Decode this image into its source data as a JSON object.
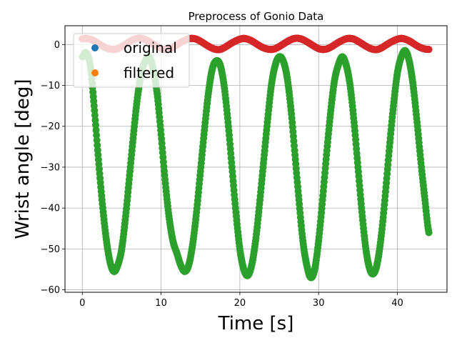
{
  "chart_data": {
    "type": "scatter",
    "title": "Preprocess of Gonio Data",
    "xlabel": "Time [s]",
    "ylabel": "Wrist angle [deg]",
    "xlim": [
      -2.2,
      46.3
    ],
    "ylim": [
      -60.6,
      4.6
    ],
    "xticks": [
      0,
      10,
      20,
      30,
      40
    ],
    "yticks": [
      0,
      -10,
      -20,
      -30,
      -40,
      -50,
      -60
    ],
    "xtick_labels": [
      "0",
      "10",
      "20",
      "30",
      "40"
    ],
    "ytick_labels": [
      "0",
      "−10",
      "−20",
      "−30",
      "−40",
      "−50",
      "−60"
    ],
    "grid": true,
    "legend_placement": "top-left",
    "legend": [
      {
        "label": "original",
        "color": "#1f77b4"
      },
      {
        "label": "filtered",
        "color": "#ff7f0e"
      }
    ],
    "series": [
      {
        "color": "#2ca02c",
        "x": [
          0.0,
          0.5,
          1.0,
          1.5,
          2.0,
          2.5,
          3.0,
          3.5,
          4.0,
          4.5,
          5.0,
          5.5,
          6.0,
          6.5,
          7.0,
          7.5,
          8.0,
          8.5,
          9.0,
          9.5,
          10.0,
          10.5,
          11.0,
          11.5,
          12.0,
          12.5,
          13.0,
          13.5,
          14.0,
          14.5,
          15.0,
          15.5,
          16.0,
          16.5,
          17.0,
          17.5,
          18.0,
          18.5,
          19.0,
          19.5,
          20.0,
          20.5,
          21.0,
          21.5,
          22.0,
          22.5,
          23.0,
          23.5,
          24.0,
          24.5,
          25.0,
          25.5,
          26.0,
          26.5,
          27.0,
          27.5,
          28.0,
          28.5,
          29.0,
          29.5,
          30.0,
          30.5,
          31.0,
          31.5,
          32.0,
          32.5,
          33.0,
          33.5,
          34.0,
          34.5,
          35.0,
          35.5,
          36.0,
          36.5,
          37.0,
          37.5,
          38.0,
          38.5,
          39.0,
          39.5,
          40.0,
          40.5,
          41.0,
          41.5,
          42.0,
          42.5,
          43.0,
          43.5,
          44.0
        ],
        "y": [
          -3,
          -2,
          -5,
          -15,
          -27,
          -38,
          -47,
          -53,
          -55.5,
          -54,
          -50,
          -42,
          -32,
          -22,
          -13,
          -7,
          -4,
          -3,
          -6,
          -12,
          -22,
          -33,
          -42,
          -48,
          -51,
          -54,
          -55.5,
          -54,
          -49,
          -41,
          -31,
          -21,
          -12,
          -6,
          -4,
          -5,
          -10,
          -19,
          -30,
          -41,
          -50,
          -55,
          -56.5,
          -54,
          -48,
          -39,
          -29,
          -19,
          -10,
          -5,
          -3,
          -4,
          -8,
          -16,
          -27,
          -38,
          -48,
          -54,
          -57,
          -55,
          -48,
          -38,
          -27,
          -17,
          -9,
          -5,
          -3,
          -5,
          -10,
          -19,
          -30,
          -41,
          -50,
          -55,
          -56,
          -53,
          -46,
          -36,
          -25,
          -15,
          -7,
          -3,
          -1.5,
          -4,
          -10,
          -19,
          -29,
          -38,
          -46
        ]
      },
      {
        "color": "#d62728",
        "x": [
          0.0,
          0.5,
          1.0,
          1.5,
          2.0,
          2.5,
          3.0,
          3.5,
          4.0,
          4.5,
          5.0,
          5.5,
          6.0,
          6.5,
          7.0,
          7.5,
          8.0,
          8.5,
          9.0,
          9.5,
          10.0,
          10.5,
          11.0,
          11.5,
          12.0,
          12.5,
          13.0,
          13.5,
          14.0,
          14.5,
          15.0,
          15.5,
          16.0,
          16.5,
          17.0,
          17.5,
          18.0,
          18.5,
          19.0,
          19.5,
          20.0,
          20.5,
          21.0,
          21.5,
          22.0,
          22.5,
          23.0,
          23.5,
          24.0,
          24.5,
          25.0,
          25.5,
          26.0,
          26.5,
          27.0,
          27.5,
          28.0,
          28.5,
          29.0,
          29.5,
          30.0,
          30.5,
          31.0,
          31.5,
          32.0,
          32.5,
          33.0,
          33.5,
          34.0,
          34.5,
          35.0,
          35.5,
          36.0,
          36.5,
          37.0,
          37.5,
          38.0,
          38.5,
          39.0,
          39.5,
          40.0,
          40.5,
          41.0,
          41.5,
          42.0,
          42.5,
          43.0,
          43.5,
          44.0
        ],
        "y": [
          1.4,
          1.5,
          1.3,
          0.9,
          0.3,
          -0.3,
          -0.8,
          -1.1,
          -1.2,
          -1.0,
          -0.5,
          0.1,
          0.7,
          1.2,
          1.5,
          1.5,
          1.2,
          0.7,
          0.1,
          -0.5,
          -1.0,
          -1.2,
          -1.1,
          -0.7,
          -0.1,
          0.5,
          1.0,
          1.4,
          1.5,
          1.3,
          0.8,
          0.2,
          -0.4,
          -0.9,
          -1.2,
          -1.2,
          -0.8,
          -0.2,
          0.4,
          0.9,
          1.3,
          1.5,
          1.3,
          0.9,
          0.3,
          -0.3,
          -0.8,
          -1.1,
          -1.2,
          -1.0,
          -0.5,
          0.1,
          0.7,
          1.2,
          1.5,
          1.5,
          1.2,
          0.7,
          0.1,
          -0.5,
          -1.0,
          -1.2,
          -1.1,
          -0.7,
          -0.1,
          0.5,
          1.0,
          1.4,
          1.5,
          1.3,
          0.8,
          0.2,
          -0.4,
          -0.9,
          -1.2,
          -1.2,
          -0.8,
          -0.2,
          0.4,
          0.9,
          1.3,
          1.5,
          1.3,
          0.9,
          0.3,
          -0.3,
          -0.8,
          -1.1,
          -1.2
        ]
      }
    ]
  }
}
